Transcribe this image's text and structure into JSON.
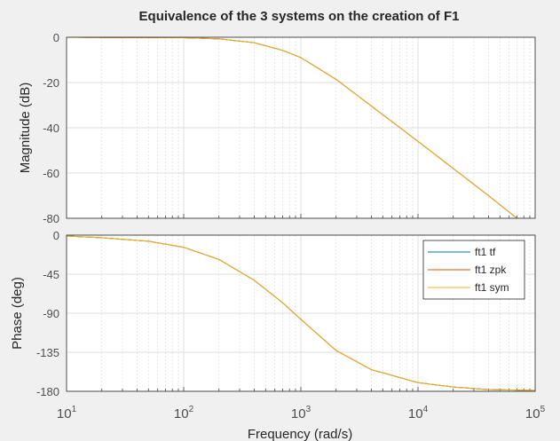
{
  "chart_data": {
    "type": "line",
    "title": "Equivalence of the 3 systems on the creation of F1",
    "xlabel": "Frequency  (rad/s)",
    "x_scale": "log",
    "xlim": [
      10,
      100000
    ],
    "x_tick_labels": [
      {
        "base": "10",
        "exp": "1"
      },
      {
        "base": "10",
        "exp": "2"
      },
      {
        "base": "10",
        "exp": "3"
      },
      {
        "base": "10",
        "exp": "4"
      },
      {
        "base": "10",
        "exp": "5"
      }
    ],
    "grid": true,
    "legend_position": "top-right of phase plot",
    "colors": {
      "ft1_tf": "#0072BD",
      "ft1_zpk": "#D95319",
      "ft1_sym": "#EDB120",
      "grid": "#dcdcdc",
      "axes_bg": "#ffffff"
    },
    "magnitude": {
      "ylabel": "Magnitude (dB)",
      "ylim": [
        -80,
        0
      ],
      "yticks": [
        "0",
        "-20",
        "-40",
        "-60",
        "-80"
      ],
      "series": [
        {
          "name": "ft1 tf",
          "x": [
            10,
            100,
            200,
            400,
            700,
            1000,
            2000,
            4000,
            10000,
            20000,
            40000,
            70000
          ],
          "y": [
            0,
            -0.2,
            -0.7,
            -2.4,
            -5.8,
            -9.0,
            -18.6,
            -30.4,
            -46,
            -58,
            -70,
            -80
          ]
        },
        {
          "name": "ft1 zpk",
          "x": [
            10,
            100,
            200,
            400,
            700,
            1000,
            2000,
            4000,
            10000,
            20000,
            40000,
            70000
          ],
          "y": [
            0,
            -0.2,
            -0.7,
            -2.4,
            -5.8,
            -9.0,
            -18.6,
            -30.4,
            -46,
            -58,
            -70,
            -80
          ]
        },
        {
          "name": "ft1 sym",
          "x": [
            10,
            100,
            200,
            400,
            700,
            1000,
            2000,
            4000,
            10000,
            20000,
            40000,
            70000
          ],
          "y": [
            0,
            -0.2,
            -0.7,
            -2.4,
            -5.8,
            -9.0,
            -18.6,
            -30.4,
            -46,
            -58,
            -70,
            -80
          ]
        }
      ]
    },
    "phase": {
      "ylabel": "Phase (deg)",
      "ylim": [
        -180,
        0
      ],
      "yticks": [
        "0",
        "-45",
        "-90",
        "-135",
        "-180"
      ],
      "series": [
        {
          "name": "ft1 tf",
          "x": [
            10,
            20,
            50,
            100,
            200,
            400,
            700,
            1000,
            2000,
            4000,
            10000,
            20000,
            40000,
            100000
          ],
          "y": [
            -1,
            -3,
            -7,
            -14,
            -28,
            -52,
            -78,
            -97,
            -133,
            -155,
            -170,
            -175,
            -178,
            -179
          ]
        },
        {
          "name": "ft1 zpk",
          "x": [
            10,
            20,
            50,
            100,
            200,
            400,
            700,
            1000,
            2000,
            4000,
            10000,
            20000,
            40000,
            100000
          ],
          "y": [
            -1,
            -3,
            -7,
            -14,
            -28,
            -52,
            -78,
            -97,
            -133,
            -155,
            -170,
            -175,
            -178,
            -179
          ]
        },
        {
          "name": "ft1 sym",
          "x": [
            10,
            20,
            50,
            100,
            200,
            400,
            700,
            1000,
            2000,
            4000,
            10000,
            20000,
            40000,
            100000
          ],
          "y": [
            -1,
            -3,
            -7,
            -14,
            -28,
            -52,
            -78,
            -97,
            -133,
            -155,
            -170,
            -175,
            -178,
            -179
          ]
        }
      ]
    },
    "legend": [
      "ft1 tf",
      "ft1 zpk",
      "ft1 sym"
    ]
  }
}
